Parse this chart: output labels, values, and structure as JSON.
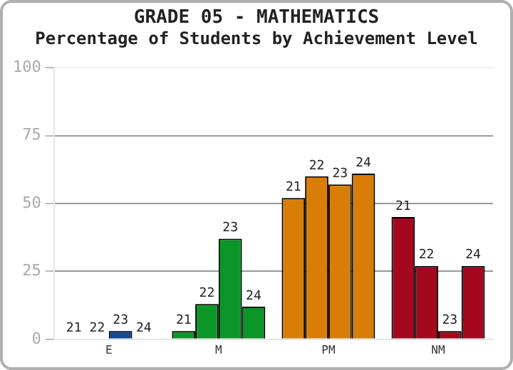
{
  "chart_data": {
    "type": "bar",
    "title": "GRADE 05 - MATHEMATICS",
    "subtitle": "Percentage of Students by Achievement Level",
    "categories": [
      "E",
      "M",
      "PM",
      "NM"
    ],
    "series": [
      {
        "name": "21",
        "colors": [
          "#0f4a96",
          "#0c9627",
          "#d87d08",
          "#a3081f"
        ],
        "values": [
          0,
          3,
          52,
          45
        ]
      },
      {
        "name": "22",
        "colors": [
          "#0f4a96",
          "#0c9627",
          "#d87d08",
          "#a3081f"
        ],
        "values": [
          0,
          13,
          60,
          27
        ]
      },
      {
        "name": "23",
        "colors": [
          "#0f4a96",
          "#0c9627",
          "#d87d08",
          "#a3081f"
        ],
        "values": [
          3,
          37,
          57,
          3
        ]
      },
      {
        "name": "24",
        "colors": [
          "#0f4a96",
          "#0c9627",
          "#d87d08",
          "#a3081f"
        ],
        "values": [
          0,
          12,
          61,
          27
        ]
      }
    ],
    "ylim": [
      0,
      100
    ],
    "yticks": [
      0,
      25,
      50,
      75,
      100
    ],
    "grid": "y",
    "legend": false
  }
}
